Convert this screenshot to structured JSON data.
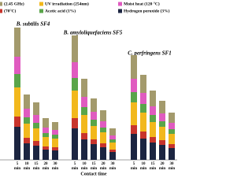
{
  "chart_data": [
    {
      "type": "stacked-bar",
      "title": "B. subtilis SF4",
      "categories": [
        "5",
        "10",
        "15",
        "20",
        "30"
      ],
      "x_unit": "min",
      "ylim": [
        0,
        170
      ],
      "series": [
        {
          "name": "Hydrogen peroxide (3%)",
          "color": "#1c2541",
          "values": [
            42,
            21,
            18,
            13,
            12
          ]
        },
        {
          "name": "(70°C)",
          "color": "#c8342c",
          "values": [
            13,
            7,
            6,
            4,
            4
          ]
        },
        {
          "name": "UV irradiation (254nm)",
          "color": "#f2b81c",
          "values": [
            37,
            18,
            16,
            12,
            11
          ]
        },
        {
          "name": "Acetic acid (1%)",
          "color": "#5aa54a",
          "values": [
            17,
            8,
            7,
            5,
            5
          ]
        },
        {
          "name": "Moist heat (120 °C)",
          "color": "#e05bc0",
          "values": [
            22,
            11,
            10,
            7,
            6
          ]
        },
        {
          "name": "(2.45 GHz)",
          "color": "#a39a6c",
          "values": [
            37,
            18,
            16,
            12,
            10
          ]
        }
      ]
    },
    {
      "type": "stacked-bar",
      "title": "B. amyloliquefaciens SF5",
      "x_label": "Contact time",
      "categories": [
        "5",
        "10",
        "15",
        "20",
        "30"
      ],
      "x_unit": "min",
      "ylim": [
        0,
        170
      ],
      "series": [
        {
          "values": [
            40,
            26,
            20,
            16,
            10
          ]
        },
        {
          "values": [
            13,
            8,
            6,
            5,
            3
          ]
        },
        {
          "values": [
            35,
            23,
            17,
            14,
            9
          ]
        },
        {
          "values": [
            16,
            10,
            8,
            6,
            4
          ]
        },
        {
          "values": [
            20,
            13,
            10,
            8,
            5
          ]
        },
        {
          "values": [
            34,
            23,
            17,
            14,
            9
          ]
        }
      ]
    },
    {
      "type": "stacked-bar",
      "title": "C. perfringens SF1",
      "categories": [
        "5",
        "10",
        "15",
        "20",
        "30"
      ],
      "x_unit": "min",
      "ylim": [
        0,
        170
      ],
      "series": [
        {
          "values": [
            33,
            27,
            22,
            19,
            15
          ]
        },
        {
          "values": [
            11,
            9,
            7,
            6,
            5
          ]
        },
        {
          "values": [
            29,
            24,
            19,
            17,
            13
          ]
        },
        {
          "values": [
            13,
            11,
            9,
            7,
            6
          ]
        },
        {
          "values": [
            17,
            14,
            11,
            10,
            8
          ]
        },
        {
          "values": [
            30,
            23,
            20,
            16,
            13
          ]
        }
      ]
    }
  ]
}
